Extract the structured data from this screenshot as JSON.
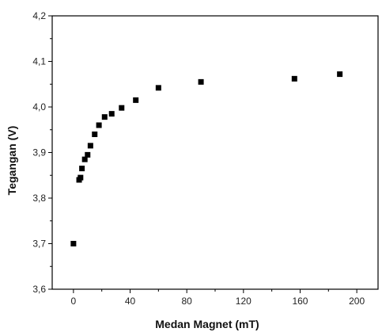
{
  "chart_data": {
    "type": "scatter",
    "title": "",
    "xlabel": "Medan Magnet (mT)",
    "ylabel": "Tegangan (V)",
    "xlim": [
      -15,
      215
    ],
    "ylim": [
      3.6,
      4.2
    ],
    "x_ticks": [
      0,
      40,
      80,
      120,
      160,
      200
    ],
    "y_ticks": [
      3.6,
      3.7,
      3.8,
      3.9,
      4.0,
      4.1,
      4.2
    ],
    "x_tick_labels": [
      "0",
      "40",
      "80",
      "120",
      "160",
      "200"
    ],
    "y_tick_labels": [
      "3,6",
      "3,7",
      "3,8",
      "3,9",
      "4,0",
      "4,1",
      "4,2"
    ],
    "grid": false,
    "marker": "square",
    "marker_color": "#000000",
    "series": [
      {
        "x": [
          0,
          4,
          5,
          6,
          8,
          10,
          12,
          15,
          18,
          22,
          27,
          34,
          44,
          60,
          90,
          156,
          188
        ],
        "y": [
          3.7,
          3.84,
          3.845,
          3.865,
          3.885,
          3.895,
          3.915,
          3.94,
          3.96,
          3.978,
          3.985,
          3.998,
          4.015,
          4.042,
          4.055,
          4.062,
          4.072
        ]
      }
    ]
  }
}
